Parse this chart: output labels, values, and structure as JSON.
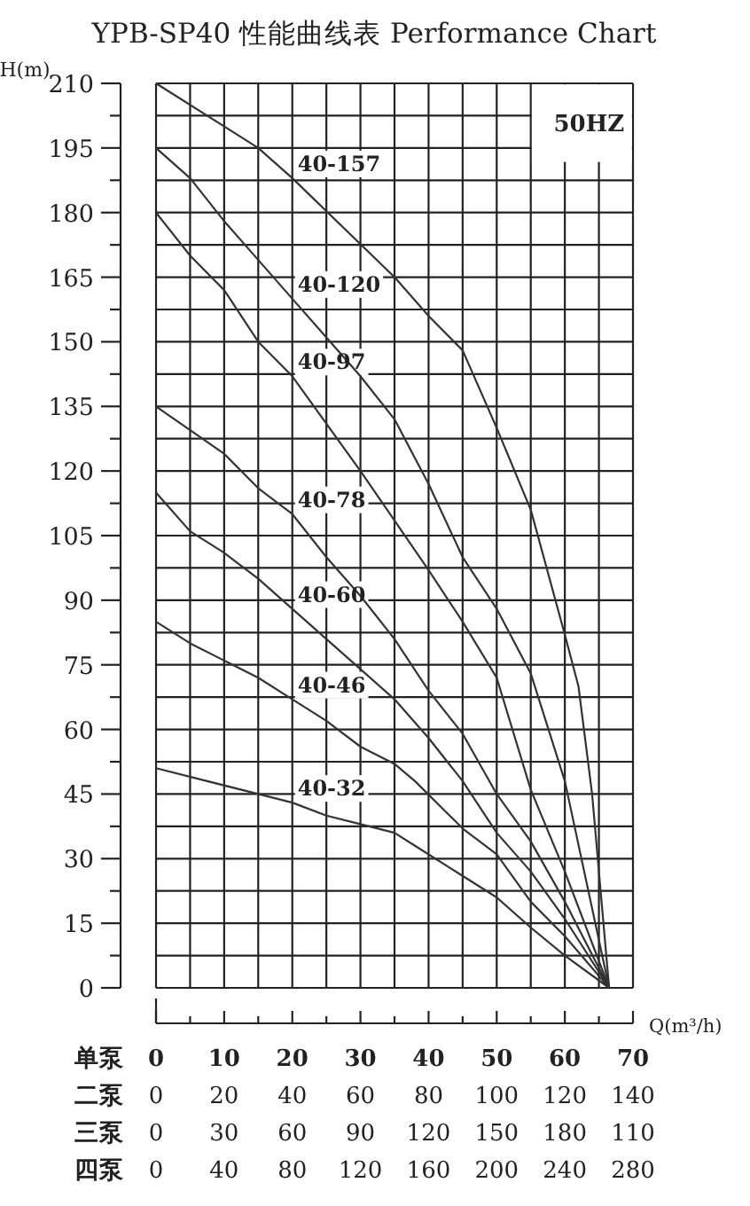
{
  "chart_data": {
    "type": "line",
    "title": "YPB-SP40 性能曲线表 Performance Chart",
    "ylabel": "H(m)",
    "xlabel": "Q(m³/h)",
    "annotations": [
      "50HZ",
      "单泵",
      "二泵",
      "三泵",
      "四泵",
      "0",
      "30",
      "60",
      "90",
      "120",
      "150",
      "180",
      "110",
      "0",
      "40",
      "80",
      "120",
      "160",
      "200",
      "240",
      "280"
    ],
    "xlim": [
      0,
      70
    ],
    "xticks": [
      0,
      10,
      20,
      30,
      40,
      50,
      60,
      70
    ],
    "x2lim": [
      0,
      140
    ],
    "x2ticks": [
      0,
      20,
      40,
      60,
      80,
      100,
      120,
      140
    ],
    "ylim": [
      0,
      210
    ],
    "yticks": [
      0,
      15,
      30,
      45,
      60,
      75,
      90,
      105,
      120,
      135,
      150,
      165,
      180,
      195,
      210
    ],
    "grid": true,
    "marker": "none",
    "line_style": "solid",
    "series": [
      {
        "name": "40-157",
        "color": "#333333",
        "x": [
          0,
          15,
          20,
          35,
          40,
          45,
          50,
          55,
          60,
          62,
          64,
          66.5
        ],
        "values": [
          210,
          195,
          188,
          165,
          156,
          148,
          130,
          111,
          82,
          70,
          45,
          0
        ]
      },
      {
        "name": "40-120",
        "color": "#333333",
        "x": [
          0,
          5,
          10,
          15,
          20,
          25,
          30,
          35,
          40,
          45,
          50,
          55,
          60,
          66.5
        ],
        "values": [
          195,
          188,
          178,
          169,
          160,
          151,
          142,
          132,
          117,
          100,
          88,
          73,
          48,
          0
        ]
      },
      {
        "name": "40-97",
        "color": "#333333",
        "x": [
          0,
          5,
          10,
          15,
          20,
          30,
          40,
          45,
          50,
          55,
          60,
          66.5
        ],
        "values": [
          180,
          170,
          162,
          150,
          142,
          120,
          97,
          85,
          72,
          46,
          27,
          0
        ]
      },
      {
        "name": "40-78",
        "color": "#333333",
        "x": [
          0,
          10,
          15,
          20,
          25,
          30,
          35,
          40,
          45,
          50,
          55,
          60,
          66.5
        ],
        "values": [
          135,
          124,
          116,
          110,
          100,
          91,
          81,
          69,
          59,
          45,
          34,
          20,
          0
        ]
      },
      {
        "name": "40-60",
        "color": "#333333",
        "x": [
          0,
          5,
          10,
          15,
          20,
          25,
          30,
          35,
          40,
          45,
          50,
          55,
          60,
          66.5
        ],
        "values": [
          115,
          106,
          101,
          95,
          88,
          81,
          74,
          67,
          58,
          48,
          36,
          27,
          16,
          0
        ]
      },
      {
        "name": "40-46",
        "color": "#333333",
        "x": [
          0,
          5,
          10,
          15,
          20,
          25,
          30,
          35,
          38,
          45,
          50,
          55,
          60,
          66.5
        ],
        "values": [
          85,
          80,
          76,
          72,
          67,
          62,
          56,
          52,
          48,
          37,
          31,
          20,
          12,
          0
        ]
      },
      {
        "name": "40-32",
        "color": "#333333",
        "x": [
          0,
          15,
          20,
          25,
          30,
          35,
          38,
          45,
          50,
          55,
          60,
          66.5
        ],
        "values": [
          51,
          45,
          43,
          40,
          38,
          36,
          33,
          26,
          21,
          14,
          7.5,
          0
        ]
      }
    ]
  }
}
